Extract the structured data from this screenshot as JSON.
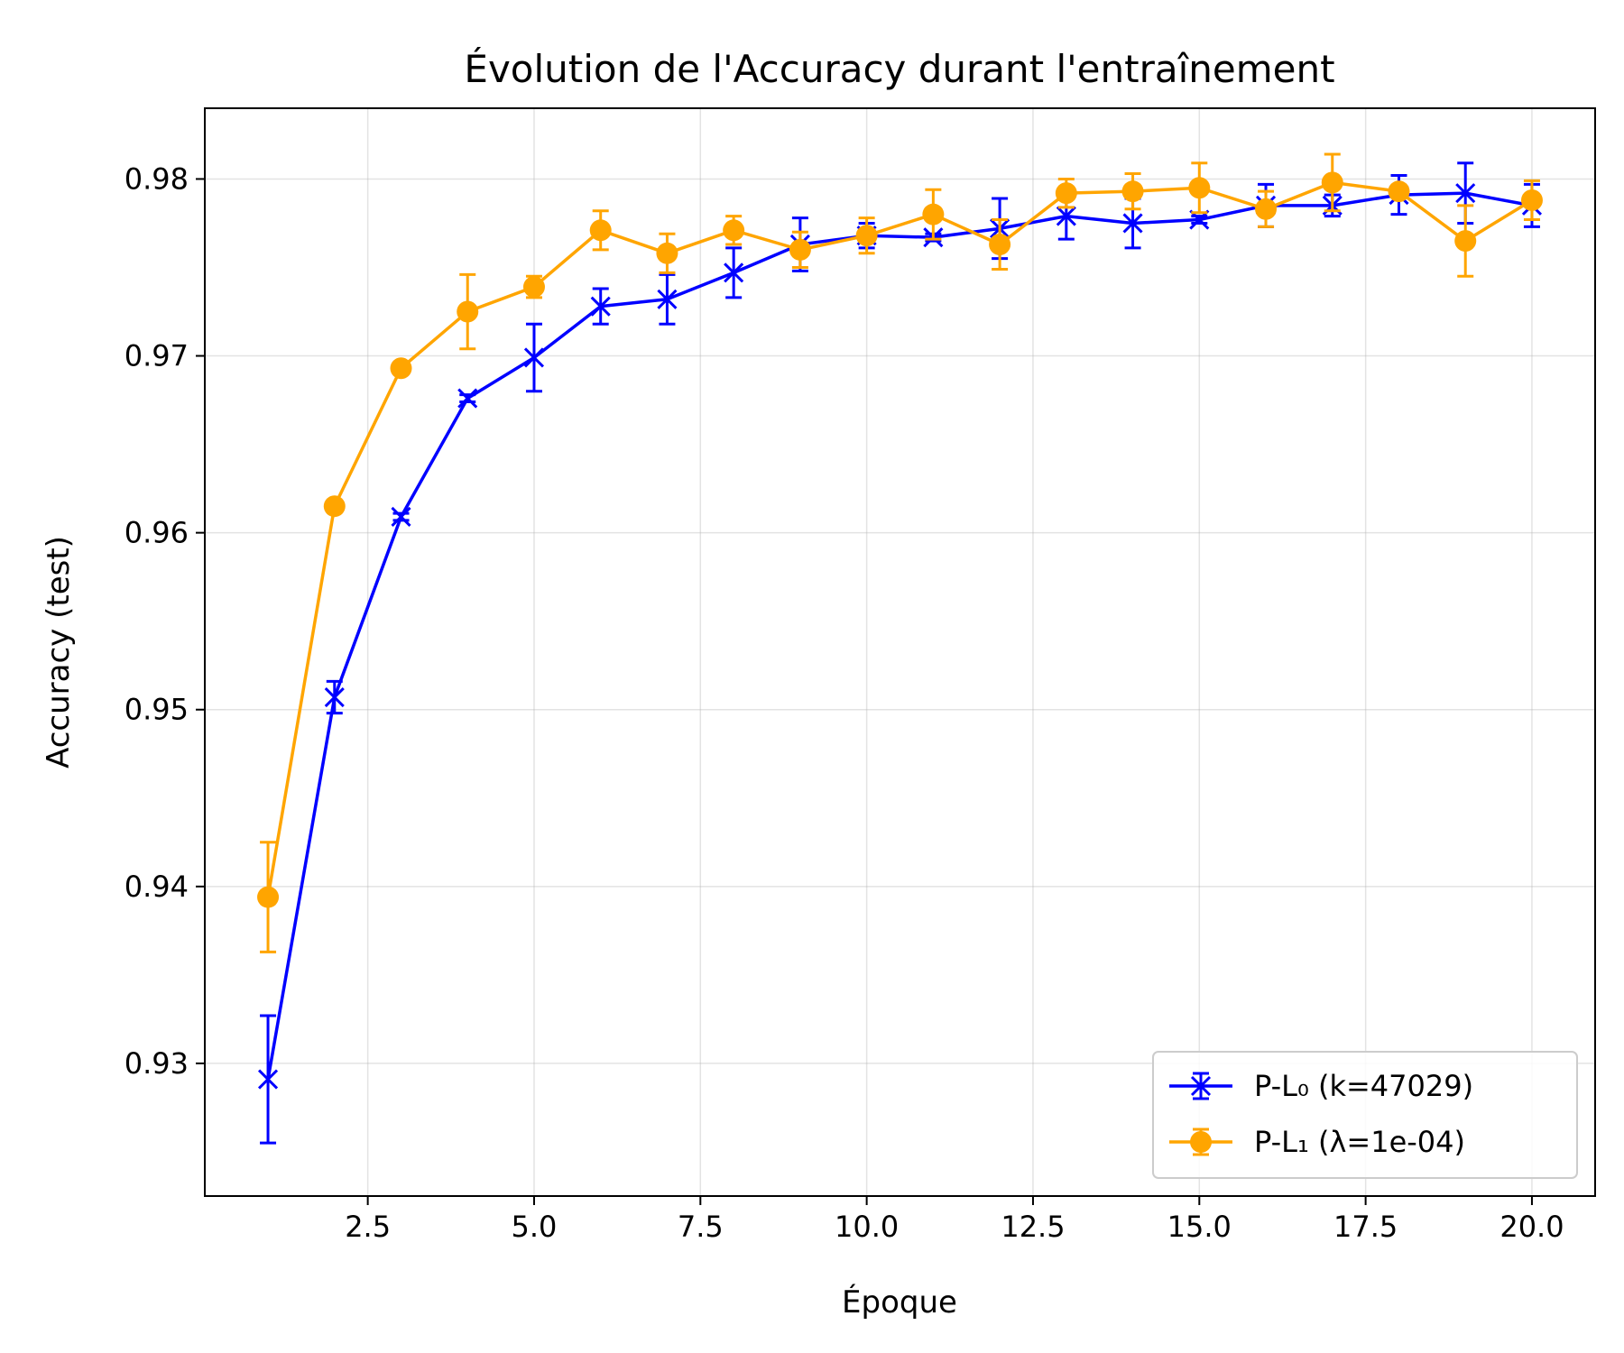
{
  "chart_data": {
    "type": "line",
    "title": "Évolution de l'Accuracy durant l'entraînement",
    "xlabel": "Époque",
    "ylabel": "Accuracy (test)",
    "xlim": [
      0.05,
      20.95
    ],
    "ylim": [
      0.9225,
      0.984
    ],
    "x_ticks": [
      2.5,
      5.0,
      7.5,
      10.0,
      12.5,
      15.0,
      17.5,
      20.0
    ],
    "x_tick_labels": [
      "2.5",
      "5.0",
      "7.5",
      "10.0",
      "12.5",
      "15.0",
      "17.5",
      "20.0"
    ],
    "y_ticks": [
      0.93,
      0.94,
      0.95,
      0.96,
      0.97,
      0.98
    ],
    "y_tick_labels": [
      "0.93",
      "0.94",
      "0.95",
      "0.96",
      "0.97",
      "0.98"
    ],
    "grid": true,
    "legend_position": "bottom-right",
    "x": [
      1,
      2,
      3,
      4,
      5,
      6,
      7,
      8,
      9,
      10,
      11,
      12,
      13,
      14,
      15,
      16,
      17,
      18,
      19,
      20
    ],
    "series": [
      {
        "name": "P-L₀ (k=47029)",
        "color": "#0000ff",
        "marker": "x",
        "values": [
          0.9291,
          0.9507,
          0.9609,
          0.9676,
          0.9699,
          0.9728,
          0.9732,
          0.9747,
          0.9763,
          0.9768,
          0.9767,
          0.9772,
          0.9779,
          0.9775,
          0.9777,
          0.9785,
          0.9785,
          0.9791,
          0.9792,
          0.9785
        ],
        "errors": [
          0.0036,
          0.0009,
          0.0002,
          0.0002,
          0.0019,
          0.001,
          0.0014,
          0.0014,
          0.0015,
          0.0007,
          0.0002,
          0.0017,
          0.0013,
          0.0014,
          0.0002,
          0.0012,
          0.0006,
          0.0011,
          0.0017,
          0.0012
        ]
      },
      {
        "name": "P-L₁ (λ=1e-04)",
        "color": "#ffa500",
        "marker": "o",
        "values": [
          0.9394,
          0.9615,
          0.9693,
          0.9725,
          0.9739,
          0.9771,
          0.9758,
          0.9771,
          0.976,
          0.9768,
          0.978,
          0.9763,
          0.9792,
          0.9793,
          0.9795,
          0.9783,
          0.9798,
          0.9793,
          0.9765,
          0.9788
        ],
        "errors": [
          0.0031,
          0.0003,
          0.0003,
          0.0021,
          0.0006,
          0.0011,
          0.0011,
          0.0008,
          0.001,
          0.001,
          0.0014,
          0.0014,
          0.0008,
          0.001,
          0.0014,
          0.001,
          0.0016,
          0.0003,
          0.002,
          0.0011
        ]
      }
    ]
  }
}
